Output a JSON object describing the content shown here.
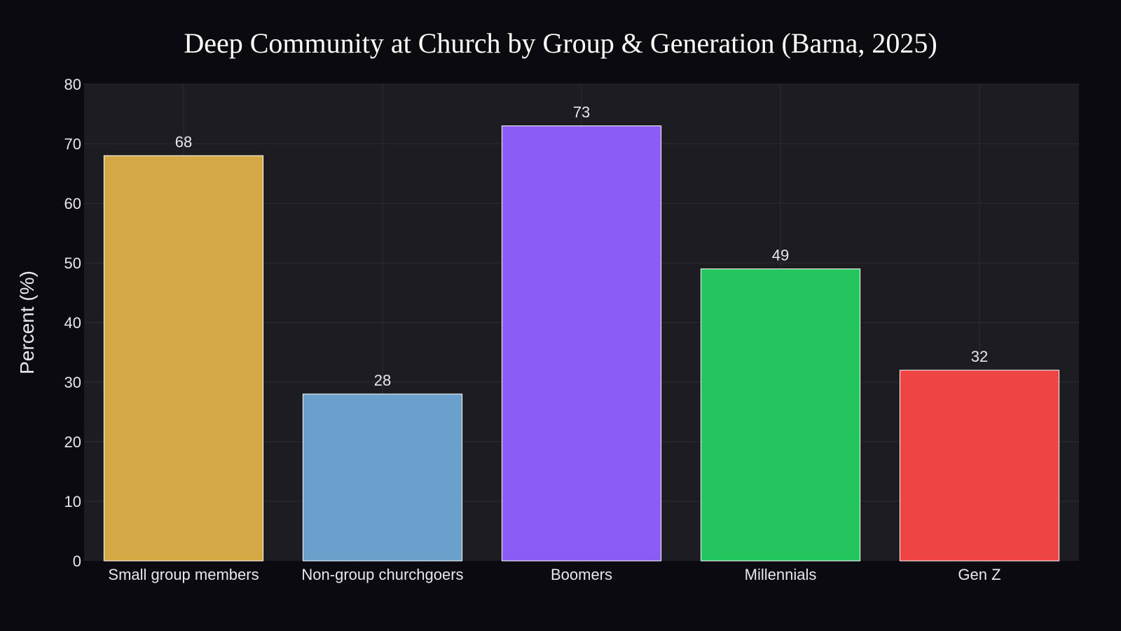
{
  "chart_data": {
    "type": "bar",
    "title": "Deep Community at Church by Group & Generation (Barna, 2025)",
    "xlabel": "",
    "ylabel": "Percent (%)",
    "categories": [
      "Small group members",
      "Non-group churchgoers",
      "Boomers",
      "Millennials",
      "Gen Z"
    ],
    "values": [
      68,
      28,
      73,
      49,
      32
    ],
    "data_labels": [
      "68",
      "28",
      "73",
      "49",
      "32"
    ],
    "colors": [
      "#d4a843",
      "#6ca0cc",
      "#8b5cf6",
      "#22c55e",
      "#ef4444"
    ],
    "ylim": [
      0,
      80
    ],
    "yticks": [
      0,
      10,
      20,
      30,
      40,
      50,
      60,
      70,
      80
    ],
    "grid": true,
    "legend": "none",
    "background": "#0b0b0f",
    "plot_background": "#1c1c21"
  }
}
